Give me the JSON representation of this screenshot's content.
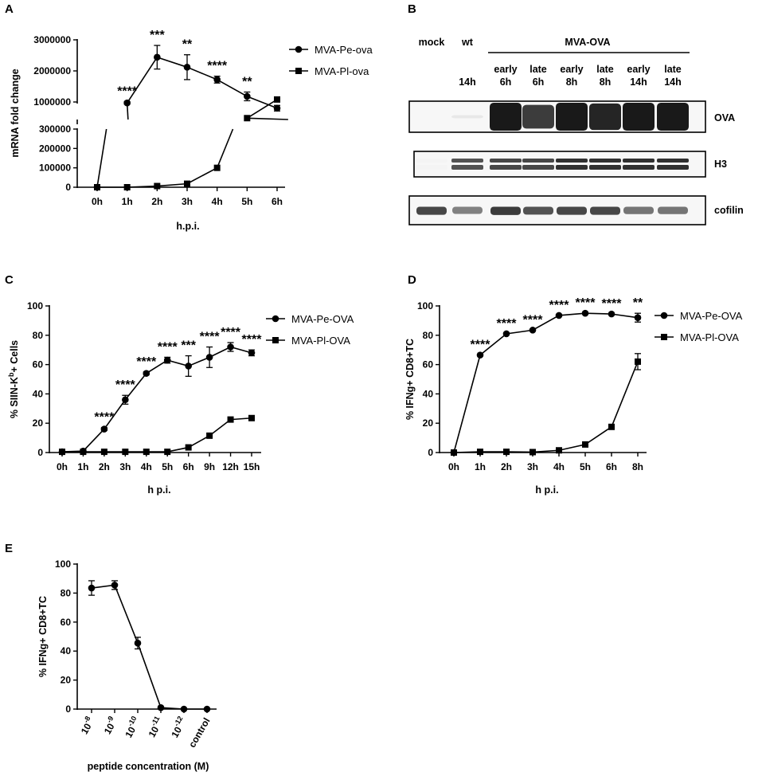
{
  "panels": {
    "A": "A",
    "B": "B",
    "C": "C",
    "D": "D",
    "E": "E"
  },
  "chart_data": [
    {
      "id": "A",
      "type": "line",
      "xlabel": "h.p.i.",
      "ylabel": "mRNA fold change",
      "categories": [
        "0h",
        "1h",
        "2h",
        "3h",
        "4h",
        "5h",
        "6h"
      ],
      "broken_y_axis": true,
      "y_lower_range": [
        0,
        300000
      ],
      "y_lower_ticks": [
        "0",
        "100000",
        "200000",
        "300000"
      ],
      "y_upper_range": [
        1000000,
        3000000
      ],
      "y_upper_ticks": [
        "1000000",
        "2000000",
        "3000000"
      ],
      "legend_position": "top-right",
      "series": [
        {
          "name": "MVA-Pe-ova",
          "marker": "circle",
          "values": [
            0,
            970000,
            2440000,
            2120000,
            1720000,
            1180000,
            800000
          ],
          "errors": [
            0,
            40000,
            380000,
            400000,
            110000,
            140000,
            90000
          ]
        },
        {
          "name": "MVA-Pl-ova",
          "marker": "square",
          "values": [
            0,
            0,
            6000,
            18000,
            100000,
            480000,
            1080000
          ],
          "errors": [
            0,
            0,
            0,
            0,
            0,
            0,
            0
          ]
        }
      ],
      "annotations": [
        "",
        "****",
        "***",
        "**",
        "****",
        "**",
        ""
      ]
    },
    {
      "id": "B",
      "type": "blot",
      "header": "MVA-OVA",
      "lanes": [
        {
          "top": "mock",
          "bottom": [
            "",
            ""
          ]
        },
        {
          "top": "wt",
          "bottom": [
            "",
            "14h"
          ]
        },
        {
          "top": "",
          "bottom": [
            "early",
            "6h"
          ]
        },
        {
          "top": "",
          "bottom": [
            "late",
            "6h"
          ]
        },
        {
          "top": "",
          "bottom": [
            "early",
            "8h"
          ]
        },
        {
          "top": "",
          "bottom": [
            "late",
            "8h"
          ]
        },
        {
          "top": "",
          "bottom": [
            "early",
            "14h"
          ]
        },
        {
          "top": "",
          "bottom": [
            "late",
            "14h"
          ]
        }
      ],
      "bands": [
        "OVA",
        "H3",
        "cofilin"
      ],
      "intensity": {
        "OVA": [
          0.0,
          0.1,
          1.0,
          0.85,
          1.0,
          0.95,
          1.0,
          1.0
        ],
        "H3": [
          0.05,
          0.75,
          0.8,
          0.8,
          0.9,
          0.9,
          0.9,
          0.9
        ],
        "cofilin": [
          0.8,
          0.55,
          0.85,
          0.75,
          0.8,
          0.8,
          0.6,
          0.6
        ]
      }
    },
    {
      "id": "C",
      "type": "line",
      "xlabel": "h p.i.",
      "ylabel": "% SIIN-K",
      "ylabel_sup": "b",
      "ylabel_tail": "+ Cells",
      "categories": [
        "0h",
        "1h",
        "2h",
        "3h",
        "4h",
        "5h",
        "6h",
        "9h",
        "12h",
        "15h"
      ],
      "ylim": [
        0,
        100
      ],
      "yticks": [
        "0",
        "20",
        "40",
        "60",
        "80",
        "100"
      ],
      "legend_position": "top-right",
      "series": [
        {
          "name": "MVA-Pe-OVA",
          "marker": "circle",
          "values": [
            0.5,
            1,
            16,
            36,
            54,
            63,
            59,
            65,
            72,
            68
          ],
          "errors": [
            0,
            0,
            1,
            3,
            1,
            2,
            7,
            7,
            3,
            2
          ]
        },
        {
          "name": "MVA-Pl-OVA",
          "marker": "square",
          "values": [
            0.5,
            0.5,
            0.5,
            0.5,
            0.5,
            0.5,
            3.5,
            11.5,
            22.5,
            23.5
          ],
          "errors": [
            0,
            0,
            0,
            0,
            0,
            0,
            0,
            0,
            0,
            0
          ]
        }
      ],
      "annotations": [
        "",
        "",
        "****",
        "****",
        "****",
        "****",
        "***",
        "****",
        "****",
        "****"
      ]
    },
    {
      "id": "D",
      "type": "line",
      "xlabel": "h p.i.",
      "ylabel": "% IFNg+ CD8+TC",
      "categories": [
        "0h",
        "1h",
        "2h",
        "3h",
        "4h",
        "5h",
        "6h",
        "8h"
      ],
      "ylim": [
        0,
        100
      ],
      "yticks": [
        "0",
        "20",
        "40",
        "60",
        "80",
        "100"
      ],
      "legend_position": "top-right",
      "series": [
        {
          "name": "MVA-Pe-OVA",
          "marker": "circle",
          "values": [
            0,
            66.5,
            81,
            83.5,
            93.5,
            95,
            94.5,
            92
          ],
          "errors": [
            0,
            0,
            0,
            0,
            0,
            0,
            0,
            3
          ]
        },
        {
          "name": "MVA-Pl-OVA",
          "marker": "square",
          "values": [
            0,
            0.5,
            0.5,
            0.3,
            1.5,
            5.5,
            17.5,
            62
          ],
          "errors": [
            0,
            0,
            0,
            0,
            0,
            0,
            0,
            5.5
          ]
        }
      ],
      "annotations": [
        "",
        "****",
        "****",
        "****",
        "****",
        "****",
        "****",
        "**"
      ]
    },
    {
      "id": "E",
      "type": "line",
      "xlabel": "peptide concentration (M)",
      "ylabel": "% IFNg+ CD8+TC",
      "categories": [
        {
          "base": "10",
          "exp": "-8"
        },
        {
          "base": "10",
          "exp": "-9"
        },
        {
          "base": "10",
          "exp": "-10"
        },
        {
          "base": "10",
          "exp": "-11"
        },
        {
          "base": "10",
          "exp": "-12"
        },
        {
          "base": "control",
          "exp": ""
        }
      ],
      "ylim": [
        0,
        100
      ],
      "yticks": [
        "0",
        "20",
        "40",
        "60",
        "80",
        "100"
      ],
      "series": [
        {
          "marker": "circle",
          "values": [
            83.5,
            85.5,
            45.5,
            1,
            0,
            0
          ],
          "errors": [
            5,
            3,
            4,
            0,
            0,
            0
          ]
        }
      ]
    }
  ]
}
